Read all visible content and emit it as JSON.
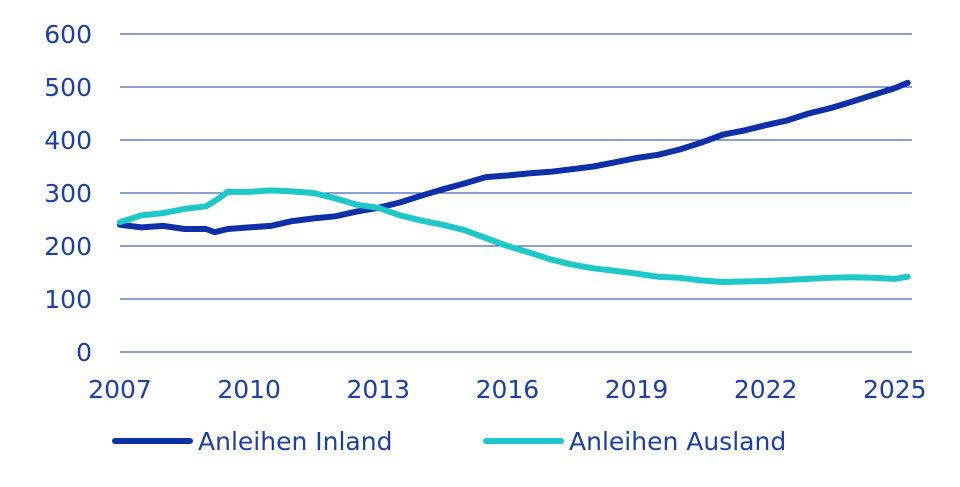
{
  "chart_data": {
    "type": "line",
    "title": "",
    "xlabel": "",
    "ylabel": "",
    "xlim": [
      2007,
      2025.4
    ],
    "ylim": [
      0,
      600
    ],
    "grid": true,
    "legend_position": "bottom",
    "y_ticks": [
      "0",
      "100",
      "200",
      "300",
      "400",
      "500",
      "600"
    ],
    "x_ticks": [
      "2007",
      "2010",
      "2013",
      "2016",
      "2019",
      "2022",
      "2025"
    ],
    "series": [
      {
        "name": "Anleihen Inland",
        "color": "#0d2fa8",
        "x": [
          2007.0,
          2007.5,
          2008.0,
          2008.5,
          2009.0,
          2009.2,
          2009.5,
          2010.0,
          2010.5,
          2011.0,
          2011.5,
          2012.0,
          2012.5,
          2013.0,
          2013.5,
          2014.0,
          2014.5,
          2015.0,
          2015.5,
          2016.0,
          2016.5,
          2017.0,
          2017.5,
          2018.0,
          2018.5,
          2019.0,
          2019.5,
          2020.0,
          2020.5,
          2021.0,
          2021.5,
          2022.0,
          2022.5,
          2023.0,
          2023.5,
          2024.0,
          2024.5,
          2025.0,
          2025.3
        ],
        "values": [
          240,
          235,
          238,
          232,
          232,
          226,
          232,
          235,
          238,
          247,
          252,
          256,
          265,
          272,
          282,
          295,
          307,
          318,
          330,
          333,
          337,
          340,
          345,
          350,
          358,
          366,
          372,
          382,
          395,
          410,
          418,
          428,
          437,
          450,
          460,
          472,
          485,
          498,
          508
        ]
      },
      {
        "name": "Anleihen Ausland",
        "color": "#1ec8c8",
        "x": [
          2007.0,
          2007.5,
          2008.0,
          2008.5,
          2009.0,
          2009.3,
          2009.5,
          2010.0,
          2010.5,
          2011.0,
          2011.5,
          2012.0,
          2012.5,
          2013.0,
          2013.5,
          2014.0,
          2014.5,
          2015.0,
          2015.5,
          2016.0,
          2016.5,
          2017.0,
          2017.5,
          2018.0,
          2018.5,
          2019.0,
          2019.5,
          2020.0,
          2020.5,
          2021.0,
          2021.5,
          2022.0,
          2022.5,
          2023.0,
          2023.5,
          2024.0,
          2024.5,
          2025.0,
          2025.3
        ],
        "values": [
          245,
          258,
          262,
          270,
          275,
          290,
          302,
          302,
          305,
          303,
          300,
          290,
          278,
          272,
          258,
          248,
          240,
          230,
          215,
          200,
          188,
          175,
          165,
          158,
          153,
          148,
          142,
          140,
          135,
          132,
          133,
          134,
          136,
          138,
          140,
          141,
          140,
          138,
          142
        ]
      }
    ]
  }
}
